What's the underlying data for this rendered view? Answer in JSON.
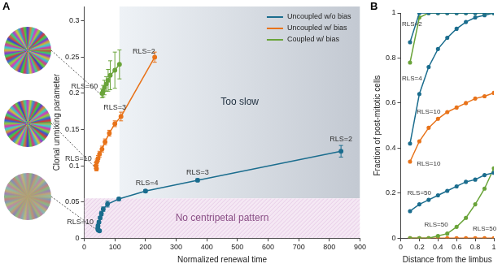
{
  "chart_data": [
    {
      "type": "scatter",
      "panel": "A",
      "x_label": "Normalized renewal time",
      "y_label": "Clonal unmixing parameter",
      "xlim": [
        0,
        900
      ],
      "xticks": [
        0,
        100,
        200,
        300,
        400,
        500,
        600,
        700,
        800,
        900
      ],
      "ylim": [
        0,
        0.32
      ],
      "yticks": [
        0,
        0.05,
        0.1,
        0.15,
        0.2,
        0.25,
        0.3
      ],
      "grid": false,
      "legend": "top right",
      "series": [
        {
          "name": "Uncoupled w/o bias",
          "color": "#1b6d8e",
          "x": [
            838,
            370,
            200,
            113,
            76,
            62,
            56,
            52,
            48,
            45,
            44,
            46,
            50
          ],
          "values": [
            0.12,
            0.08,
            0.065,
            0.054,
            0.047,
            0.04,
            0.034,
            0.028,
            0.022,
            0.017,
            0.013,
            0.011,
            0.01
          ],
          "errors": [
            0.008,
            0.002,
            0.002,
            0.002,
            0.004,
            0.003,
            0.003,
            0.002,
            0.002,
            0.002,
            0.002,
            0.001,
            0.001
          ]
        },
        {
          "name": "Uncoupled w/ bias",
          "color": "#e8731a",
          "x": [
            230,
            120,
            100,
            82,
            68,
            58,
            50,
            45,
            41,
            38,
            40
          ],
          "values": [
            0.25,
            0.168,
            0.158,
            0.145,
            0.133,
            0.123,
            0.116,
            0.11,
            0.105,
            0.1,
            0.096
          ],
          "errors": [
            0.007,
            0.006,
            0.004,
            0.004,
            0.004,
            0.004,
            0.004,
            0.004,
            0.004,
            0.004,
            0.003
          ]
        },
        {
          "name": "Coupled w/ bias",
          "color": "#6aa43a",
          "x": [
            115,
            100,
            85,
            78,
            72,
            66,
            62,
            58
          ],
          "values": [
            0.24,
            0.232,
            0.225,
            0.218,
            0.213,
            0.208,
            0.203,
            0.2
          ],
          "errors": [
            0.02,
            0.025,
            0.02,
            0.015,
            0.01,
            0.01,
            0.008,
            0.006
          ]
        }
      ],
      "regions": [
        {
          "label": "Too slow",
          "xlim": [
            115,
            900
          ],
          "ylim": [
            0.055,
            0.32
          ]
        },
        {
          "label": "No centripetal pattern",
          "xlim": [
            0,
            900
          ],
          "ylim": [
            0,
            0.055
          ]
        }
      ],
      "annotations": [
        {
          "text": "RLS=2",
          "x": 838,
          "y": 0.136
        },
        {
          "text": "RLS=3",
          "x": 370,
          "y": 0.091
        },
        {
          "text": "RLS=4",
          "x": 205,
          "y": 0.076
        },
        {
          "text": "RLS=3",
          "x": 100,
          "y": 0.18
        },
        {
          "text": "RLS=2",
          "x": 195,
          "y": 0.258
        }
      ],
      "snapshots": [
        {
          "label": "RLS=60",
          "x": 58,
          "y": 0.2
        },
        {
          "label": "RLS=10",
          "x": 38,
          "y": 0.1
        },
        {
          "label": "RLS=10",
          "x": 44,
          "y": 0.013
        }
      ]
    },
    {
      "type": "line",
      "panel": "B",
      "x_label": "Distance from the limbus",
      "y_label": "Fraction of post-mitotic cells",
      "xlim": [
        0,
        1
      ],
      "xticks": [
        0,
        0.2,
        0.4,
        0.6,
        0.8,
        1
      ],
      "ylim": [
        0,
        1
      ],
      "yticks": [
        0,
        0.2,
        0.4,
        0.6,
        0.8,
        1
      ],
      "grid": false,
      "x": [
        0.1,
        0.2,
        0.3,
        0.4,
        0.5,
        0.6,
        0.7,
        0.8,
        0.9,
        1
      ],
      "series": [
        {
          "color": "#1b6d8e",
          "values": [
            0.87,
            1,
            1,
            1,
            1,
            1,
            1,
            1,
            1,
            1
          ]
        },
        {
          "color": "#6aa43a",
          "values": [
            0.78,
            0.98,
            1,
            1,
            1,
            1,
            1,
            1,
            1,
            1
          ]
        },
        {
          "color": "#1b6d8e",
          "values": [
            0.42,
            0.64,
            0.76,
            0.84,
            0.89,
            0.93,
            0.96,
            0.98,
            0.99,
            1
          ]
        },
        {
          "color": "#e8731a",
          "values": [
            0.34,
            0.43,
            0.49,
            0.53,
            0.56,
            0.58,
            0.6,
            0.62,
            0.63,
            0.645
          ]
        },
        {
          "color": "#1b6d8e",
          "values": [
            0.12,
            0.15,
            0.17,
            0.19,
            0.21,
            0.23,
            0.25,
            0.26,
            0.28,
            0.29
          ]
        },
        {
          "color": "#6aa43a",
          "values": [
            0,
            0,
            0,
            0.01,
            0.02,
            0.05,
            0.09,
            0.15,
            0.22,
            0.31
          ]
        },
        {
          "color": "#e8731a",
          "values": [
            0,
            0,
            0,
            0,
            0,
            0,
            0,
            0,
            0,
            0
          ]
        }
      ],
      "annotations": [
        {
          "text": "RLS=2",
          "x": 0.12,
          "y": 0.95
        },
        {
          "text": "RLS=4",
          "x": 0.12,
          "y": 0.71
        },
        {
          "text": "RLS=10",
          "x": 0.3,
          "y": 0.56
        },
        {
          "text": "RLS=10",
          "x": 0.3,
          "y": 0.33
        },
        {
          "text": "RLS=50",
          "x": 0.2,
          "y": 0.2
        },
        {
          "text": "RLS=50",
          "x": 0.38,
          "y": 0.06
        },
        {
          "text": "RLS=50",
          "x": 0.9,
          "y": 0.04
        }
      ]
    }
  ]
}
